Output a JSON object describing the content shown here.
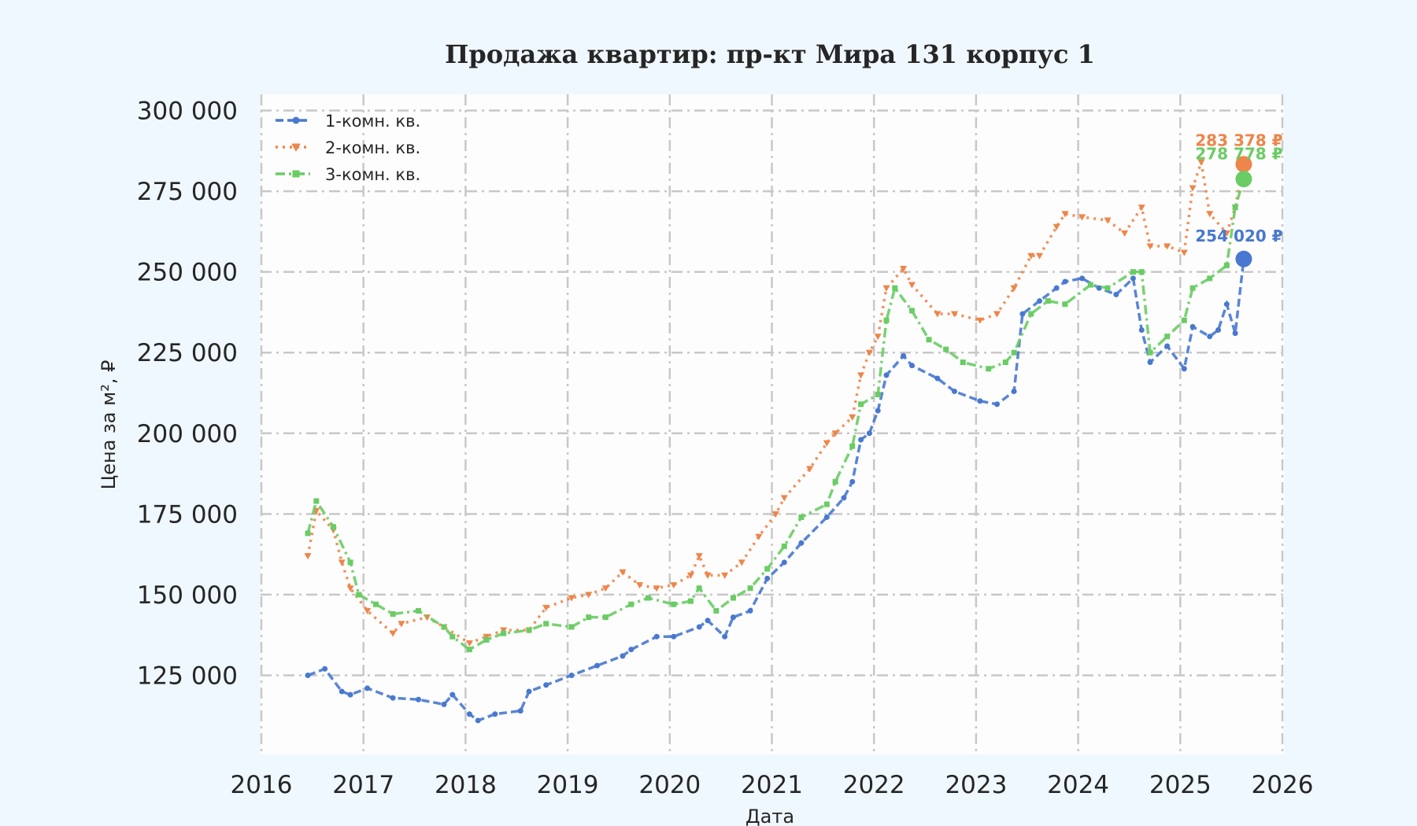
{
  "chart_data": {
    "type": "line",
    "title": "Продажа квартир: пр-кт Мира 131 корпус 1",
    "xlabel": "Дата",
    "ylabel": "Цена за м², ₽",
    "xlim": [
      "2016-01-01",
      "2026-01-01"
    ],
    "ylim": [
      100500,
      305000
    ],
    "x_ticks": [
      "2016",
      "2017",
      "2018",
      "2019",
      "2020",
      "2021",
      "2022",
      "2023",
      "2024",
      "2025",
      "2026"
    ],
    "y_ticks": [
      125000,
      150000,
      175000,
      200000,
      225000,
      250000,
      275000,
      300000
    ],
    "y_tick_labels": [
      "125 000",
      "150 000",
      "175 000",
      "200 000",
      "225 000",
      "250 000",
      "275 000",
      "300 000"
    ],
    "grid": true,
    "legend_position": "top-left",
    "series": [
      {
        "name": "1-комн. кв.",
        "color": "#4878d0",
        "line_style": "dashed",
        "marker": "circle",
        "x": [
          "2016-06",
          "2016-08",
          "2016-10",
          "2016-11",
          "2017-01",
          "2017-04",
          "2017-07",
          "2017-10",
          "2017-11",
          "2018-01",
          "2018-02",
          "2018-04",
          "2018-07",
          "2018-08",
          "2018-10",
          "2019-01",
          "2019-04",
          "2019-07",
          "2019-08",
          "2019-11",
          "2020-01",
          "2020-04",
          "2020-05",
          "2020-07",
          "2020-08",
          "2020-10",
          "2020-12",
          "2021-02",
          "2021-04",
          "2021-07",
          "2021-09",
          "2021-10",
          "2021-11",
          "2021-12",
          "2022-01",
          "2022-02",
          "2022-04",
          "2022-05",
          "2022-08",
          "2022-10",
          "2023-01",
          "2023-03",
          "2023-05",
          "2023-06",
          "2023-08",
          "2023-10",
          "2023-11",
          "2024-01",
          "2024-03",
          "2024-05",
          "2024-07",
          "2024-08",
          "2024-09",
          "2024-11",
          "2025-01",
          "2025-02",
          "2025-04",
          "2025-05",
          "2025-06",
          "2025-07",
          "2025-08"
        ],
        "y": [
          125000,
          127000,
          120000,
          119000,
          121000,
          118000,
          117500,
          116000,
          119000,
          113000,
          111000,
          113000,
          114000,
          120000,
          122000,
          125000,
          128000,
          131000,
          133000,
          137000,
          137000,
          140000,
          142000,
          137000,
          143000,
          145000,
          155000,
          160000,
          166000,
          174000,
          180000,
          185000,
          198000,
          200000,
          207000,
          218000,
          224000,
          221000,
          217000,
          213000,
          210000,
          209000,
          213000,
          237000,
          241000,
          245000,
          247000,
          248000,
          245000,
          243000,
          248000,
          232000,
          222000,
          227000,
          220000,
          233000,
          230000,
          232000,
          240000,
          231000,
          254020
        ],
        "last_value_label": "254 020 ₽"
      },
      {
        "name": "2-комн. кв.",
        "color": "#ee854a",
        "line_style": "dotted",
        "marker": "triangle-down",
        "x": [
          "2016-06",
          "2016-07",
          "2016-09",
          "2016-10",
          "2016-11",
          "2017-01",
          "2017-04",
          "2017-05",
          "2017-08",
          "2017-10",
          "2018-01",
          "2018-03",
          "2018-05",
          "2018-08",
          "2018-10",
          "2019-01",
          "2019-03",
          "2019-05",
          "2019-07",
          "2019-09",
          "2019-11",
          "2020-01",
          "2020-03",
          "2020-04",
          "2020-05",
          "2020-07",
          "2020-09",
          "2020-11",
          "2021-01",
          "2021-02",
          "2021-05",
          "2021-07",
          "2021-08",
          "2021-10",
          "2021-11",
          "2021-12",
          "2022-01",
          "2022-02",
          "2022-04",
          "2022-05",
          "2022-08",
          "2022-10",
          "2023-01",
          "2023-03",
          "2023-05",
          "2023-07",
          "2023-08",
          "2023-10",
          "2023-11",
          "2024-01",
          "2024-04",
          "2024-06",
          "2024-08",
          "2024-09",
          "2024-11",
          "2025-01",
          "2025-02",
          "2025-03",
          "2025-04",
          "2025-06",
          "2025-07",
          "2025-08"
        ],
        "y": [
          162000,
          176000,
          170000,
          160000,
          152000,
          145000,
          138000,
          141000,
          143000,
          140000,
          135000,
          137000,
          139000,
          139000,
          146000,
          149000,
          150000,
          152000,
          157000,
          153000,
          152000,
          153000,
          156000,
          162000,
          156000,
          156000,
          160000,
          168000,
          175000,
          180000,
          189000,
          197000,
          200000,
          205000,
          218000,
          225000,
          230000,
          245000,
          251000,
          246000,
          237000,
          237000,
          235000,
          237000,
          245000,
          255000,
          255000,
          264000,
          268000,
          267000,
          266000,
          262000,
          270000,
          258000,
          258000,
          256000,
          276000,
          284000,
          268000,
          262000,
          270000,
          283378
        ],
        "last_value_label": "283 378 ₽"
      },
      {
        "name": "3-комн. кв.",
        "color": "#6acc64",
        "line_style": "dash-dot",
        "marker": "square",
        "x": [
          "2016-06",
          "2016-07",
          "2016-09",
          "2016-11",
          "2016-12",
          "2017-02",
          "2017-04",
          "2017-07",
          "2017-10",
          "2017-11",
          "2018-01",
          "2018-03",
          "2018-05",
          "2018-08",
          "2018-10",
          "2019-01",
          "2019-03",
          "2019-05",
          "2019-08",
          "2019-10",
          "2020-01",
          "2020-03",
          "2020-04",
          "2020-06",
          "2020-08",
          "2020-10",
          "2020-12",
          "2021-02",
          "2021-04",
          "2021-07",
          "2021-08",
          "2021-10",
          "2021-11",
          "2022-01",
          "2022-02",
          "2022-03",
          "2022-05",
          "2022-07",
          "2022-09",
          "2022-11",
          "2023-02",
          "2023-04",
          "2023-05",
          "2023-07",
          "2023-09",
          "2023-11",
          "2024-02",
          "2024-04",
          "2024-07",
          "2024-08",
          "2024-09",
          "2024-11",
          "2025-01",
          "2025-02",
          "2025-04",
          "2025-06",
          "2025-07",
          "2025-08"
        ],
        "y": [
          169000,
          179000,
          171000,
          160000,
          150000,
          147000,
          144000,
          145000,
          140000,
          137000,
          133000,
          136000,
          138000,
          139000,
          141000,
          140000,
          143000,
          143000,
          147000,
          149000,
          147000,
          148000,
          152000,
          145000,
          149000,
          152000,
          158000,
          165000,
          174000,
          178000,
          185000,
          196000,
          209000,
          212000,
          235000,
          245000,
          238000,
          229000,
          226000,
          222000,
          220000,
          222000,
          225000,
          237000,
          241000,
          240000,
          246000,
          245000,
          250000,
          250000,
          225000,
          230000,
          235000,
          245000,
          248000,
          252000,
          270000,
          278778
        ],
        "last_value_label": "278 778 ₽"
      }
    ]
  },
  "background_color": "#f0f8ff",
  "plot_background_color": "#fdfdfd"
}
